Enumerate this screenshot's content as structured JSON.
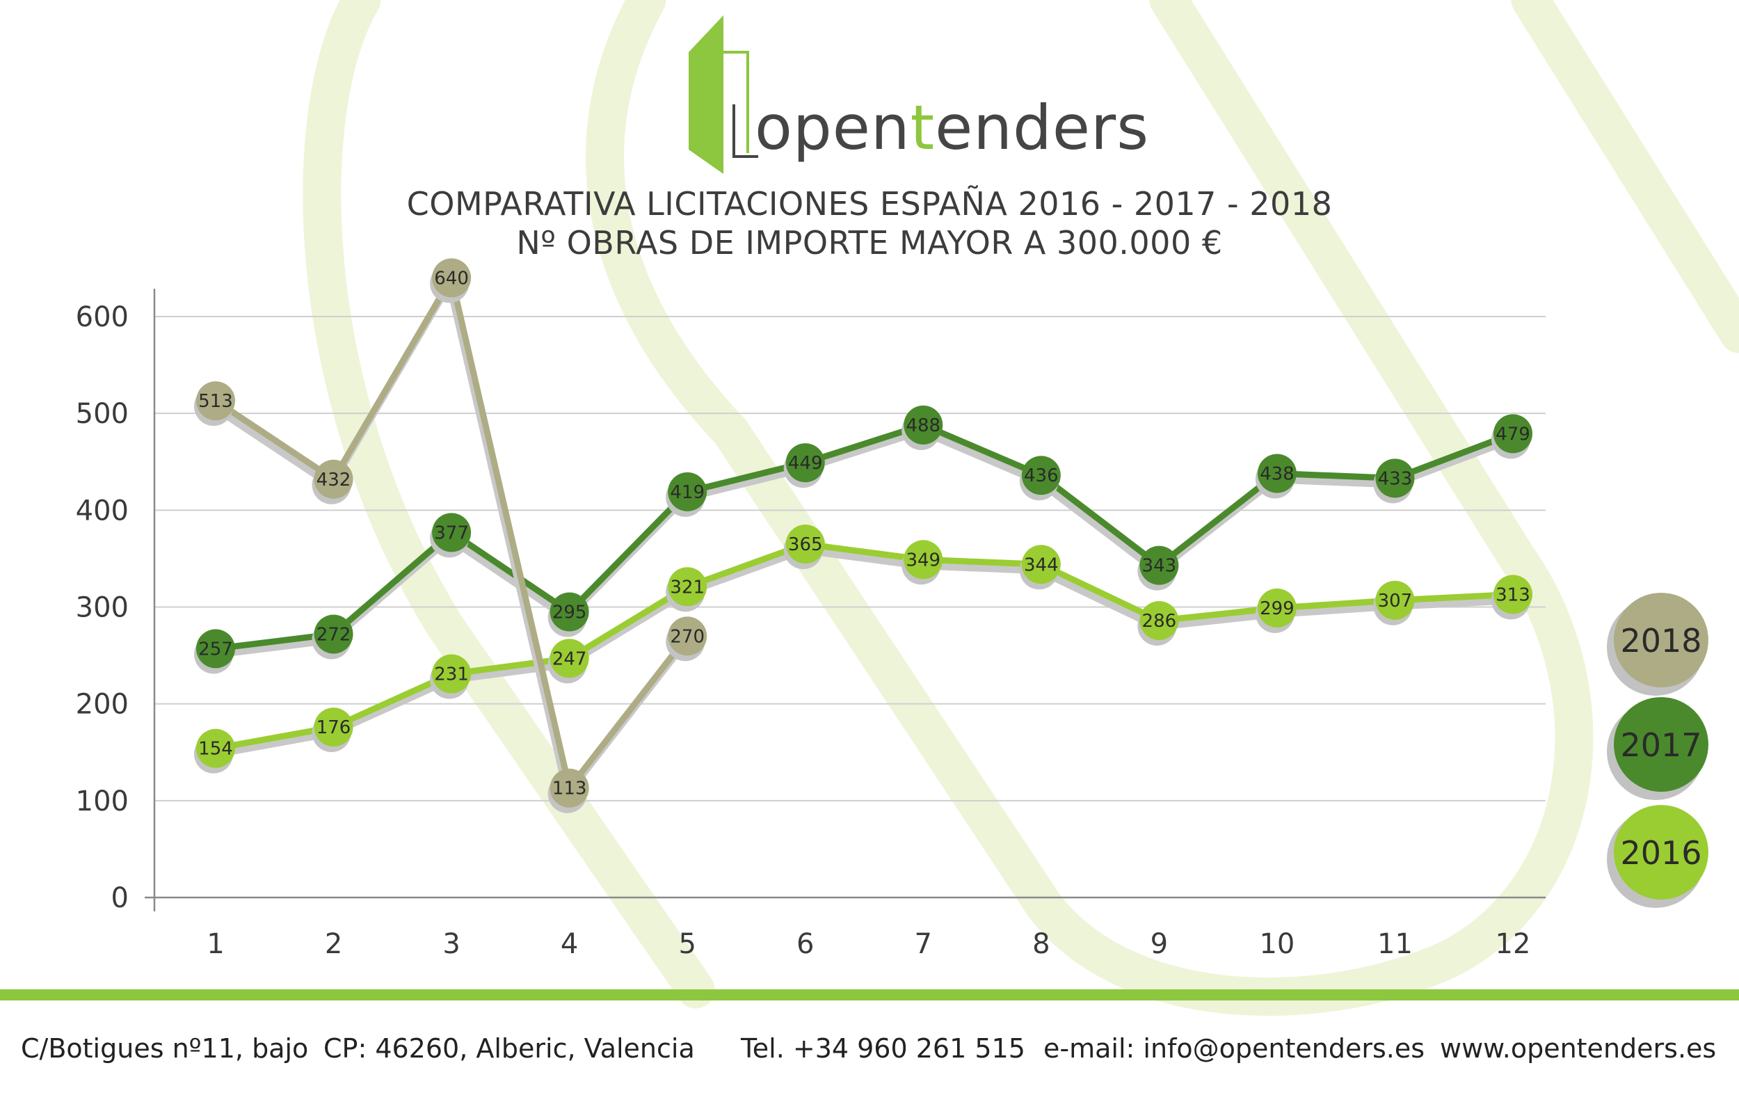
{
  "logo": {
    "part1": "open",
    "part2": "t",
    "part3": "enders"
  },
  "title": {
    "line1": "COMPARATIVA LICITACIONES ESPAÑA 2016 - 2017 - 2018",
    "line2": "Nº OBRAS DE IMPORTE MAYOR A 300.000 €"
  },
  "colors": {
    "s2016": "#9acd32",
    "s2017": "#4a8a2c",
    "s2018": "#adac85",
    "accent": "#8dc63f"
  },
  "chart_data": {
    "type": "line",
    "title": "COMPARATIVA LICITACIONES ESPAÑA 2016 - 2017 - 2018 / Nº OBRAS DE IMPORTE MAYOR A 300.000 €",
    "xlabel": "",
    "ylabel": "",
    "x": [
      1,
      2,
      3,
      4,
      5,
      6,
      7,
      8,
      9,
      10,
      11,
      12
    ],
    "ylim": [
      0,
      600
    ],
    "yticks": [
      0,
      100,
      200,
      300,
      400,
      500,
      600
    ],
    "grid": true,
    "legend_position": "right",
    "series": [
      {
        "name": "2018",
        "values": [
          513,
          432,
          640,
          113,
          270,
          null,
          null,
          null,
          null,
          null,
          null,
          null
        ]
      },
      {
        "name": "2017",
        "values": [
          257,
          272,
          377,
          295,
          419,
          449,
          488,
          436,
          343,
          438,
          433,
          479
        ]
      },
      {
        "name": "2016",
        "values": [
          154,
          176,
          231,
          247,
          321,
          365,
          349,
          344,
          286,
          299,
          307,
          313
        ]
      }
    ]
  },
  "footer": {
    "address": "C/Botigues nº11, bajo",
    "cp": "CP: 46260, Alberic, Valencia",
    "tel": "Tel. +34 960 261 515",
    "email": "e-mail: info@opentenders.es",
    "web": "www.opentenders.es"
  }
}
